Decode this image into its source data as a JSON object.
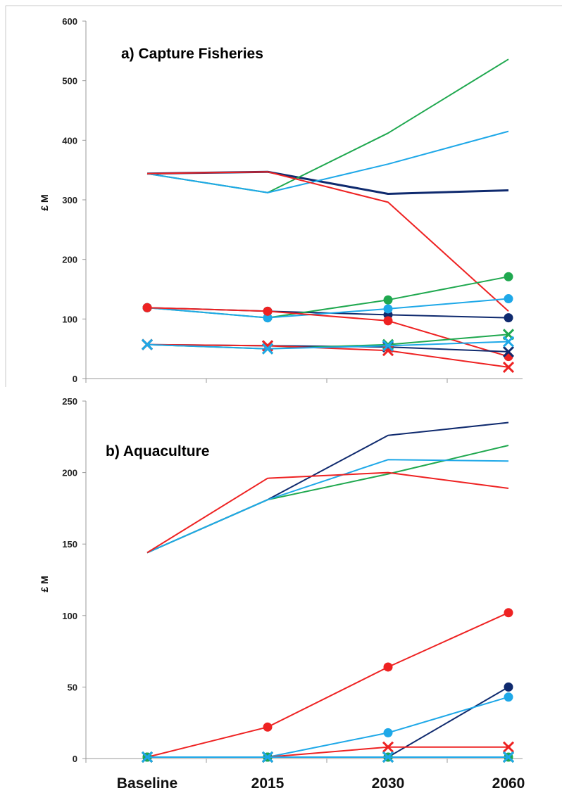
{
  "chart_data": [
    {
      "type": "line",
      "title": "a) Capture Fisheries",
      "ylabel": "£ M",
      "ylim": [
        0,
        600
      ],
      "yticks": [
        "0",
        "100",
        "200",
        "300",
        "400",
        "500",
        "600"
      ],
      "categories": [
        "Baseline",
        "2015",
        "2030",
        "2060"
      ],
      "x_tick_labels_shown": false,
      "grid": false,
      "series": [
        {
          "group": "lines",
          "color": "#0f2a6e",
          "marker": "none",
          "values": [
            344,
            347,
            310,
            316
          ]
        },
        {
          "group": "lines",
          "color": "#1fa84f",
          "marker": "none",
          "values": [
            344,
            312,
            412,
            536
          ]
        },
        {
          "group": "lines",
          "color": "#1ea8e8",
          "marker": "none",
          "values": [
            344,
            312,
            360,
            415
          ]
        },
        {
          "group": "lines",
          "color": "#ee2222",
          "marker": "none",
          "values": [
            344,
            347,
            296,
            113
          ]
        },
        {
          "group": "circles",
          "color": "#0f2a6e",
          "marker": "circle",
          "values": [
            119,
            113,
            107,
            102
          ]
        },
        {
          "group": "circles",
          "color": "#1fa84f",
          "marker": "circle",
          "values": [
            119,
            102,
            132,
            171
          ]
        },
        {
          "group": "circles",
          "color": "#1ea8e8",
          "marker": "circle",
          "values": [
            119,
            102,
            117,
            134
          ]
        },
        {
          "group": "circles",
          "color": "#ee2222",
          "marker": "circle",
          "values": [
            119,
            113,
            97,
            37
          ]
        },
        {
          "group": "crosses",
          "color": "#0f2a6e",
          "marker": "cross",
          "values": [
            57,
            55,
            53,
            45
          ]
        },
        {
          "group": "crosses",
          "color": "#1fa84f",
          "marker": "cross",
          "values": [
            57,
            50,
            57,
            74
          ]
        },
        {
          "group": "crosses",
          "color": "#ee2222",
          "marker": "cross",
          "values": [
            57,
            55,
            47,
            19
          ]
        },
        {
          "group": "crosses",
          "color": "#1ea8e8",
          "marker": "cross",
          "values": [
            57,
            50,
            55,
            62
          ]
        }
      ]
    },
    {
      "type": "line",
      "title": "b) Aquaculture",
      "ylabel": "£ M",
      "ylim": [
        0,
        250
      ],
      "yticks": [
        "0",
        "50",
        "100",
        "150",
        "200",
        "250"
      ],
      "categories": [
        "Baseline",
        "2015",
        "2030",
        "2060"
      ],
      "x_tick_labels_shown": true,
      "grid": false,
      "series": [
        {
          "group": "lines",
          "color": "#0f2a6e",
          "marker": "none",
          "values": [
            144,
            181,
            226,
            235
          ]
        },
        {
          "group": "lines",
          "color": "#1fa84f",
          "marker": "none",
          "values": [
            144,
            181,
            199,
            219
          ]
        },
        {
          "group": "lines",
          "color": "#1ea8e8",
          "marker": "none",
          "values": [
            144,
            181,
            209,
            208
          ]
        },
        {
          "group": "lines",
          "color": "#ee2222",
          "marker": "none",
          "values": [
            144,
            196,
            200,
            189
          ]
        },
        {
          "group": "circles",
          "color": "#ee2222",
          "marker": "circle",
          "values": [
            1,
            22,
            64,
            102
          ]
        },
        {
          "group": "circles",
          "color": "#0f2a6e",
          "marker": "circle",
          "values": [
            1,
            1,
            1,
            50
          ]
        },
        {
          "group": "circles",
          "color": "#1ea8e8",
          "marker": "circle",
          "values": [
            1,
            1,
            18,
            43
          ]
        },
        {
          "group": "circles",
          "color": "#1fa84f",
          "marker": "circle",
          "values": [
            1,
            1,
            1,
            1
          ]
        },
        {
          "group": "crosses",
          "color": "#ee2222",
          "marker": "cross",
          "values": [
            1,
            1,
            8,
            8
          ]
        },
        {
          "group": "crosses",
          "color": "#0f2a6e",
          "marker": "cross",
          "values": [
            1,
            1,
            1,
            1
          ]
        },
        {
          "group": "crosses",
          "color": "#1fa84f",
          "marker": "cross",
          "values": [
            1,
            1,
            1,
            1
          ]
        },
        {
          "group": "crosses",
          "color": "#1ea8e8",
          "marker": "cross",
          "values": [
            1,
            1,
            1,
            1
          ]
        }
      ]
    }
  ]
}
